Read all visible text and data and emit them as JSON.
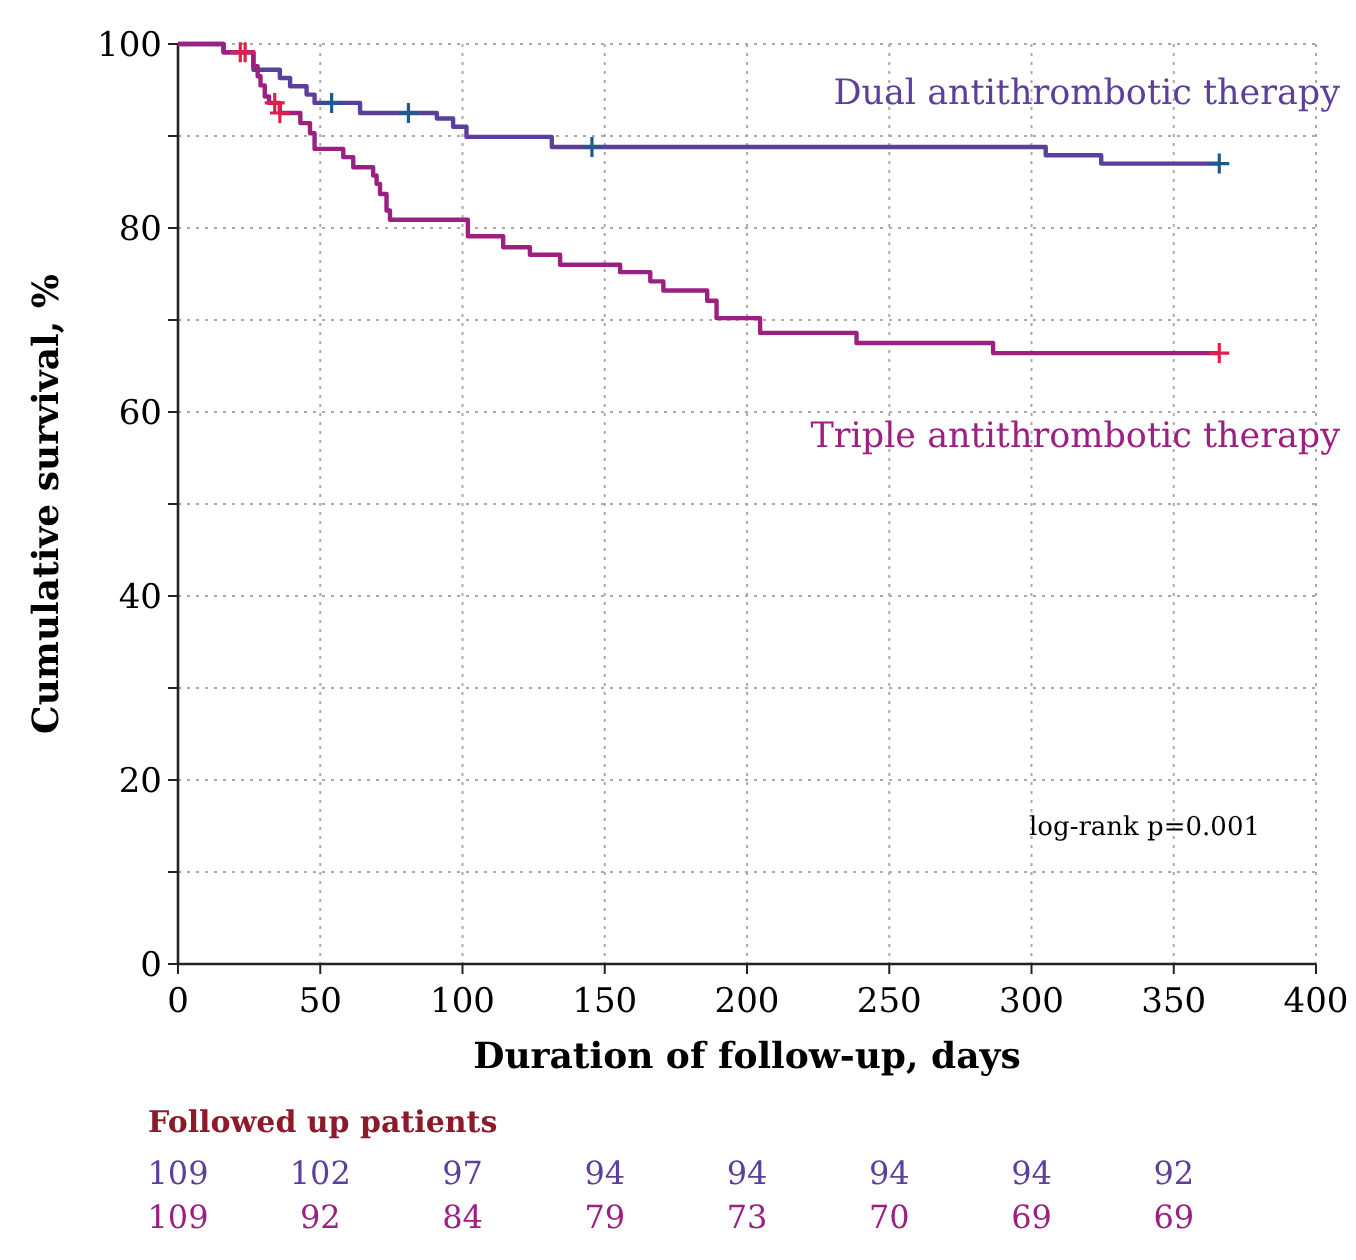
{
  "chart_data": {
    "type": "step",
    "xlabel": "Duration of follow-up, days",
    "ylabel": "Cumulative survival, %",
    "xlim": [
      0,
      400
    ],
    "ylim": [
      0,
      100
    ],
    "xticks": [
      0,
      50,
      100,
      150,
      200,
      250,
      300,
      350,
      400
    ],
    "yticks": [
      0,
      {
        "value": 10,
        "label": null
      },
      20,
      {
        "value": 30,
        "label": null
      },
      40,
      {
        "value": 50,
        "label": null
      },
      60,
      {
        "value": 70,
        "label": null
      },
      80,
      {
        "value": 90,
        "label": null
      },
      100
    ],
    "grid": true,
    "line_style": "solid",
    "series": [
      {
        "name": "Dual antithrombotic therapy",
        "color": "#5b3f9b",
        "x": [
          0,
          16,
          26.5,
          35.8,
          39.4,
          45.2,
          48,
          64,
          91,
          96.7,
          101.4,
          131.4,
          305,
          324.5,
          366
        ],
        "values": [
          100,
          99.1,
          97.2,
          96.3,
          95.4,
          94.5,
          93.6,
          92.5,
          91.9,
          91.0,
          89.9,
          88.8,
          87.9,
          87.0,
          87.0
        ]
      },
      {
        "name": "Triple antithrombotic therapy",
        "color": "#9b2080",
        "x": [
          0,
          16,
          26.5,
          28,
          29,
          30.5,
          32,
          35.8,
          43,
          46.4,
          48,
          58.1,
          61.6,
          68.6,
          69.8,
          71,
          73.3,
          74.5,
          101.9,
          114.3,
          123.7,
          134.3,
          155.4,
          166,
          170.6,
          186,
          189.3,
          204.6,
          238.5,
          286.5,
          366
        ],
        "values": [
          100,
          99.1,
          97.6,
          96.5,
          95.5,
          94.3,
          93.6,
          92.5,
          91.4,
          90.3,
          88.6,
          87.7,
          86.6,
          85.7,
          84.8,
          83.7,
          81.9,
          80.9,
          79.1,
          77.9,
          77.1,
          76.0,
          75.2,
          74.2,
          73.2,
          72.1,
          70.2,
          68.6,
          67.5,
          66.4,
          66.4
        ]
      },
      {
        "type": "scatter",
        "marker": "cross",
        "color": "#1f5a8a",
        "x": [
          54,
          81,
          145.5,
          366
        ],
        "values": [
          93.6,
          92.5,
          88.8,
          87.0
        ]
      },
      {
        "type": "scatter",
        "marker": "cross",
        "color": "#e0204a",
        "x": [
          21.9,
          23.6,
          34,
          35.8,
          366
        ],
        "values": [
          99.1,
          99.1,
          93.6,
          92.5,
          66.4
        ]
      }
    ],
    "annotations": [
      "log-rank p=0.001",
      "Followed up patients",
      "109",
      "102",
      "97",
      "94",
      "94",
      "94",
      "94",
      "92",
      "109",
      "92",
      "84",
      "79",
      "73",
      "70",
      "69",
      "69"
    ]
  }
}
